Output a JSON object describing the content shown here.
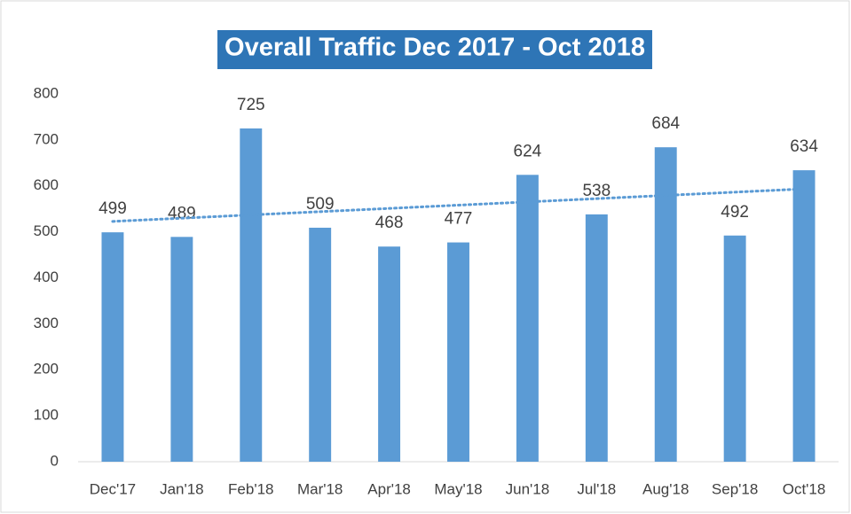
{
  "chart_data": {
    "type": "bar",
    "title": "Overall Traffic Dec 2017 - Oct 2018",
    "categories": [
      "Dec'17",
      "Jan'18",
      "Feb'18",
      "Mar'18",
      "Apr'18",
      "May'18",
      "Jun'18",
      "Jul'18",
      "Aug'18",
      "Sep'18",
      "Oct'18"
    ],
    "values": [
      499,
      489,
      725,
      509,
      468,
      477,
      624,
      538,
      684,
      492,
      634
    ],
    "color": "#5b9bd5",
    "ylim": [
      0,
      800
    ],
    "yticks": [
      0,
      100,
      200,
      300,
      400,
      500,
      600,
      700,
      800
    ],
    "grid": false,
    "data_labels": true,
    "trendline": "linear",
    "trendline_color": "#5b9bd5"
  }
}
